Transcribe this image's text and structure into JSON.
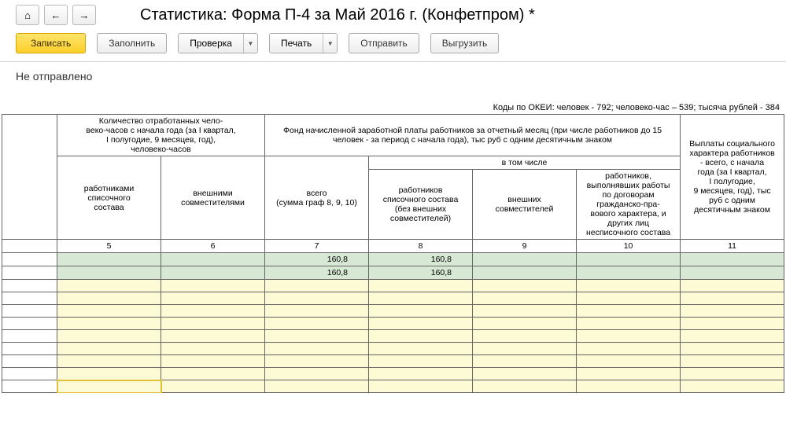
{
  "title": "Статистика: Форма П-4 за Май 2016 г. (Конфетпром) *",
  "nav": {
    "home": "⌂",
    "back": "←",
    "fwd": "→"
  },
  "toolbar": {
    "save": "Записать",
    "fill": "Заполнить",
    "check": "Проверка",
    "print": "Печать",
    "send": "Отправить",
    "export": "Выгрузить"
  },
  "status": "Не отправлено",
  "above": "Коды по ОКЕИ: человек - 792; человеко-час – 539; тысяча рублей - 384",
  "headers": {
    "g1": "Количество отработанных чело-\nвеко-часов с начала года (за I квартал,\nI полугодие, 9 месяцев, год),\nчеловеко-часов",
    "g2": "Фонд начисленной заработной платы работников за отчетный месяц (при числе работников до 15\nчеловек - за период с начала года), тыс руб с одним десятичным знаком",
    "g3": "Выплаты социального\nхарактера работников\n- всего, с начала\nгода (за I квартал,\nI полугодие,\n9 месяцев, год), тыс\nруб с одним\nдесятичным знаком",
    "c5": "работниками\nсписочного\nсостава",
    "c6": "внешними\nсовместителями",
    "c7a": "всего\n(сумма граф 8, 9, 10)",
    "c7b": "в том числе",
    "c8": "работников\nсписочного состава\n(без внешних\nсовместителей)",
    "c9": "внешних\nсовместителей",
    "c10": "работников,\nвыполнявших работы\nпо договорам\nгражданско-пра-\nвового характера, и\nдругих лиц\nнесписочного состава"
  },
  "colnums": {
    "c5": "5",
    "c6": "6",
    "c7": "7",
    "c8": "8",
    "c9": "9",
    "c10": "10",
    "c11": "11"
  },
  "rows": [
    {
      "type": "green",
      "c7": "160,8",
      "c8": "160,8"
    },
    {
      "type": "green",
      "c7": "160,8",
      "c8": "160,8"
    },
    {
      "type": "yellow"
    },
    {
      "type": "yellow"
    },
    {
      "type": "yellow"
    },
    {
      "type": "yellow"
    },
    {
      "type": "yellow"
    },
    {
      "type": "yellow"
    },
    {
      "type": "yellow"
    },
    {
      "type": "yellow"
    },
    {
      "type": "yellow",
      "selected_col": 1
    }
  ]
}
